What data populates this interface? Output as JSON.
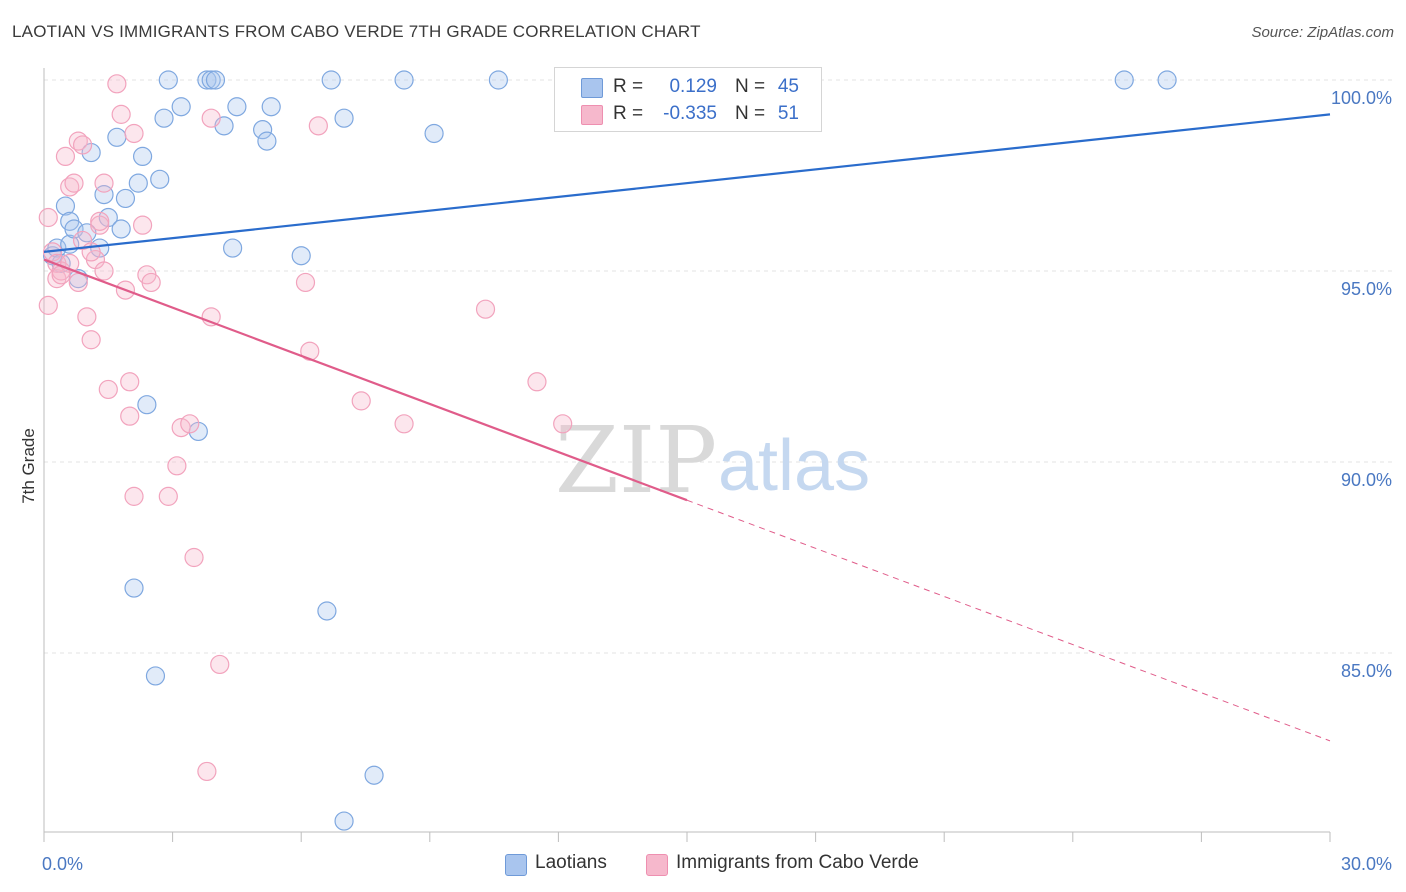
{
  "title": "LAOTIAN VS IMMIGRANTS FROM CABO VERDE 7TH GRADE CORRELATION CHART",
  "source": "Source: ZipAtlas.com",
  "watermark": {
    "zip": "ZIP",
    "atlas": "atlas"
  },
  "legend": {
    "rows": [
      {
        "r_label": "R =",
        "r_value": "0.129",
        "n_label": "N =",
        "n_value": "45",
        "color": "#a9c5ee"
      },
      {
        "r_label": "R =",
        "r_value": "-0.335",
        "n_label": "N =",
        "n_value": "51",
        "color": "#f6b8cc"
      }
    ]
  },
  "bottom_legend": [
    {
      "label": "Laotians",
      "color": "#a9c5ee"
    },
    {
      "label": "Immigrants from Cabo Verde",
      "color": "#f6b8cc"
    }
  ],
  "chart_data": {
    "type": "scatter",
    "title": "LAOTIAN VS IMMIGRANTS FROM CABO VERDE 7TH GRADE CORRELATION CHART",
    "xlabel": "",
    "ylabel": "7th Grade",
    "xlim": [
      0,
      30
    ],
    "ylim": [
      80.5,
      100.8
    ],
    "x_tick_labels": [
      {
        "value": 0,
        "label": "0.0%"
      },
      {
        "value": 30,
        "label": "30.0%"
      }
    ],
    "y_tick_labels": [
      {
        "value": 100,
        "label": "100.0%"
      },
      {
        "value": 95,
        "label": "95.0%"
      },
      {
        "value": 90,
        "label": "90.0%"
      },
      {
        "value": 85,
        "label": "85.0%"
      }
    ],
    "x_minor_ticks": [
      0,
      3,
      6,
      9,
      12,
      15,
      18,
      21,
      24,
      27,
      30
    ],
    "grid": true,
    "legend_position": "top-center",
    "series": [
      {
        "name": "Laotians",
        "color": "#7fa8e0",
        "line_color": "#2a6ccc",
        "trend": {
          "x0": 0,
          "y0": 95.5,
          "x1": 30,
          "y1": 99.1,
          "dashed_from": null
        },
        "points": [
          [
            0.2,
            95.4
          ],
          [
            0.3,
            95.6
          ],
          [
            0.4,
            95.2
          ],
          [
            0.5,
            96.7
          ],
          [
            0.6,
            96.3
          ],
          [
            0.6,
            95.7
          ],
          [
            0.7,
            96.1
          ],
          [
            0.8,
            94.8
          ],
          [
            1.0,
            96.0
          ],
          [
            1.1,
            98.1
          ],
          [
            1.3,
            95.6
          ],
          [
            1.4,
            97.0
          ],
          [
            1.5,
            96.4
          ],
          [
            1.7,
            98.5
          ],
          [
            1.8,
            96.1
          ],
          [
            1.9,
            96.9
          ],
          [
            2.3,
            98.0
          ],
          [
            2.2,
            97.3
          ],
          [
            2.7,
            97.4
          ],
          [
            2.8,
            99.0
          ],
          [
            2.9,
            100.0
          ],
          [
            3.2,
            99.3
          ],
          [
            3.8,
            100.0
          ],
          [
            3.9,
            100.0
          ],
          [
            4.0,
            100.0
          ],
          [
            4.2,
            98.8
          ],
          [
            4.5,
            99.3
          ],
          [
            5.1,
            98.7
          ],
          [
            5.2,
            98.4
          ],
          [
            5.3,
            99.3
          ],
          [
            4.4,
            95.6
          ],
          [
            6.0,
            95.4
          ],
          [
            6.7,
            100.0
          ],
          [
            7.0,
            99.0
          ],
          [
            8.4,
            100.0
          ],
          [
            9.1,
            98.6
          ],
          [
            10.6,
            100.0
          ],
          [
            25.2,
            100.0
          ],
          [
            26.2,
            100.0
          ],
          [
            2.4,
            91.5
          ],
          [
            3.6,
            90.8
          ],
          [
            2.1,
            86.7
          ],
          [
            6.6,
            86.1
          ],
          [
            2.6,
            84.4
          ],
          [
            7.7,
            81.8
          ],
          [
            7.0,
            80.6
          ]
        ]
      },
      {
        "name": "Immigrants from Cabo Verde",
        "color": "#f2a3bd",
        "line_color": "#e05c8a",
        "trend": {
          "x0": 0,
          "y0": 95.3,
          "x1": 30,
          "y1": 82.7,
          "dashed_from": 15.0
        },
        "points": [
          [
            0.1,
            94.1
          ],
          [
            0.1,
            96.4
          ],
          [
            0.2,
            95.5
          ],
          [
            0.3,
            94.8
          ],
          [
            0.3,
            95.2
          ],
          [
            0.4,
            95.0
          ],
          [
            0.5,
            98.0
          ],
          [
            0.6,
            95.2
          ],
          [
            0.6,
            97.2
          ],
          [
            0.7,
            97.3
          ],
          [
            0.8,
            98.4
          ],
          [
            0.9,
            98.3
          ],
          [
            0.9,
            95.8
          ],
          [
            1.0,
            93.8
          ],
          [
            1.1,
            93.2
          ],
          [
            1.2,
            95.3
          ],
          [
            1.3,
            96.2
          ],
          [
            1.3,
            96.3
          ],
          [
            1.4,
            97.3
          ],
          [
            1.4,
            95.0
          ],
          [
            1.5,
            91.9
          ],
          [
            1.7,
            99.9
          ],
          [
            1.8,
            99.1
          ],
          [
            1.9,
            94.5
          ],
          [
            2.0,
            92.1
          ],
          [
            2.0,
            91.2
          ],
          [
            2.1,
            89.1
          ],
          [
            2.1,
            98.6
          ],
          [
            2.3,
            96.2
          ],
          [
            2.4,
            94.9
          ],
          [
            2.5,
            94.7
          ],
          [
            2.9,
            89.1
          ],
          [
            3.1,
            89.9
          ],
          [
            3.2,
            90.9
          ],
          [
            3.4,
            91.0
          ],
          [
            3.5,
            87.5
          ],
          [
            3.8,
            81.9
          ],
          [
            3.9,
            99.0
          ],
          [
            3.9,
            93.8
          ],
          [
            4.1,
            84.7
          ],
          [
            6.1,
            94.7
          ],
          [
            6.2,
            92.9
          ],
          [
            6.4,
            98.8
          ],
          [
            7.4,
            91.6
          ],
          [
            8.4,
            91.0
          ],
          [
            10.3,
            94.0
          ],
          [
            11.5,
            92.1
          ],
          [
            12.1,
            91.0
          ],
          [
            0.4,
            94.9
          ],
          [
            1.1,
            95.5
          ],
          [
            0.8,
            94.7
          ]
        ]
      }
    ]
  }
}
